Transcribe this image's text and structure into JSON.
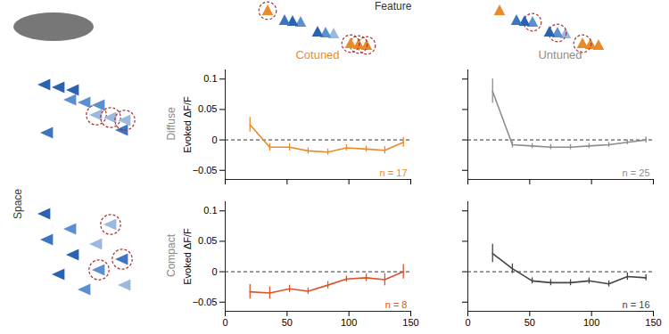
{
  "figure": {
    "column_label": "Feature",
    "row_label": "Space"
  },
  "chart_data": [
    {
      "type": "line",
      "title": "Cotuned",
      "row_label": "Diffuse",
      "ylabel": "Evoked ΔF/F",
      "x": [
        20,
        36,
        52,
        67,
        83,
        98,
        114,
        129,
        144
      ],
      "values": [
        0.025,
        -0.012,
        -0.012,
        -0.018,
        -0.02,
        -0.013,
        -0.015,
        -0.017,
        -0.004
      ],
      "errors": [
        0.012,
        0.006,
        0.006,
        0.005,
        0.005,
        0.005,
        0.005,
        0.006,
        0.008
      ],
      "color": "#e98a2b",
      "xlim": [
        0,
        150
      ],
      "xticks": [
        0,
        50,
        100,
        150
      ],
      "ylim": [
        -0.065,
        0.115
      ],
      "yticks": [
        {
          "value": -0.05,
          "label": "−0.05"
        },
        0,
        0.05,
        0.1
      ],
      "hline": 0,
      "annotations": [
        "n = 17"
      ],
      "tick_labels": "y"
    },
    {
      "type": "line",
      "title": "Untuned",
      "x": [
        20,
        36,
        52,
        67,
        83,
        98,
        114,
        129,
        144
      ],
      "values": [
        0.08,
        -0.008,
        -0.01,
        -0.012,
        -0.012,
        -0.01,
        -0.008,
        -0.004,
        0.0
      ],
      "errors": [
        0.02,
        0.005,
        0.004,
        0.004,
        0.004,
        0.004,
        0.004,
        0.004,
        0.005
      ],
      "color": "#8c8c8c",
      "xlim": [
        0,
        150
      ],
      "xticks": [
        0,
        50,
        100,
        150
      ],
      "ylim": [
        -0.065,
        0.115
      ],
      "yticks": [
        {
          "value": -0.05,
          "label": "−0.05"
        },
        0,
        0.05,
        0.1
      ],
      "hline": 0,
      "annotations": [
        "n = 25"
      ],
      "tick_labels": false
    },
    {
      "type": "line",
      "row_label": "Compact",
      "ylabel": "Evoked ΔF/F",
      "x": [
        20,
        36,
        52,
        67,
        83,
        98,
        114,
        129,
        144
      ],
      "values": [
        -0.033,
        -0.035,
        -0.028,
        -0.032,
        -0.022,
        -0.012,
        -0.01,
        -0.013,
        0.0
      ],
      "errors": [
        0.012,
        0.01,
        0.006,
        0.005,
        0.006,
        0.005,
        0.006,
        0.01,
        0.012
      ],
      "color": "#d9532b",
      "xlim": [
        0,
        150
      ],
      "xticks": [
        0,
        50,
        100,
        150
      ],
      "ylim": [
        -0.065,
        0.115
      ],
      "yticks": [
        {
          "value": -0.05,
          "label": "−0.05"
        },
        0,
        0.05,
        0.1
      ],
      "hline": 0,
      "annotations": [
        "n = 8"
      ]
    },
    {
      "type": "line",
      "x": [
        20,
        36,
        52,
        67,
        83,
        98,
        114,
        129,
        144
      ],
      "values": [
        0.03,
        0.005,
        -0.015,
        -0.018,
        -0.018,
        -0.015,
        -0.02,
        -0.008,
        -0.01
      ],
      "errors": [
        0.015,
        0.008,
        0.005,
        0.005,
        0.005,
        0.005,
        0.005,
        0.006,
        0.005
      ],
      "color": "#444444",
      "xlim": [
        0,
        150
      ],
      "xticks": [
        0,
        50,
        100,
        150
      ],
      "ylim": [
        -0.065,
        0.115
      ],
      "yticks": [
        {
          "value": -0.05,
          "label": "−0.05"
        },
        0,
        0.05,
        0.1
      ],
      "hline": 0,
      "annotations": [
        "n = 16"
      ],
      "tick_labels": "x"
    }
  ]
}
